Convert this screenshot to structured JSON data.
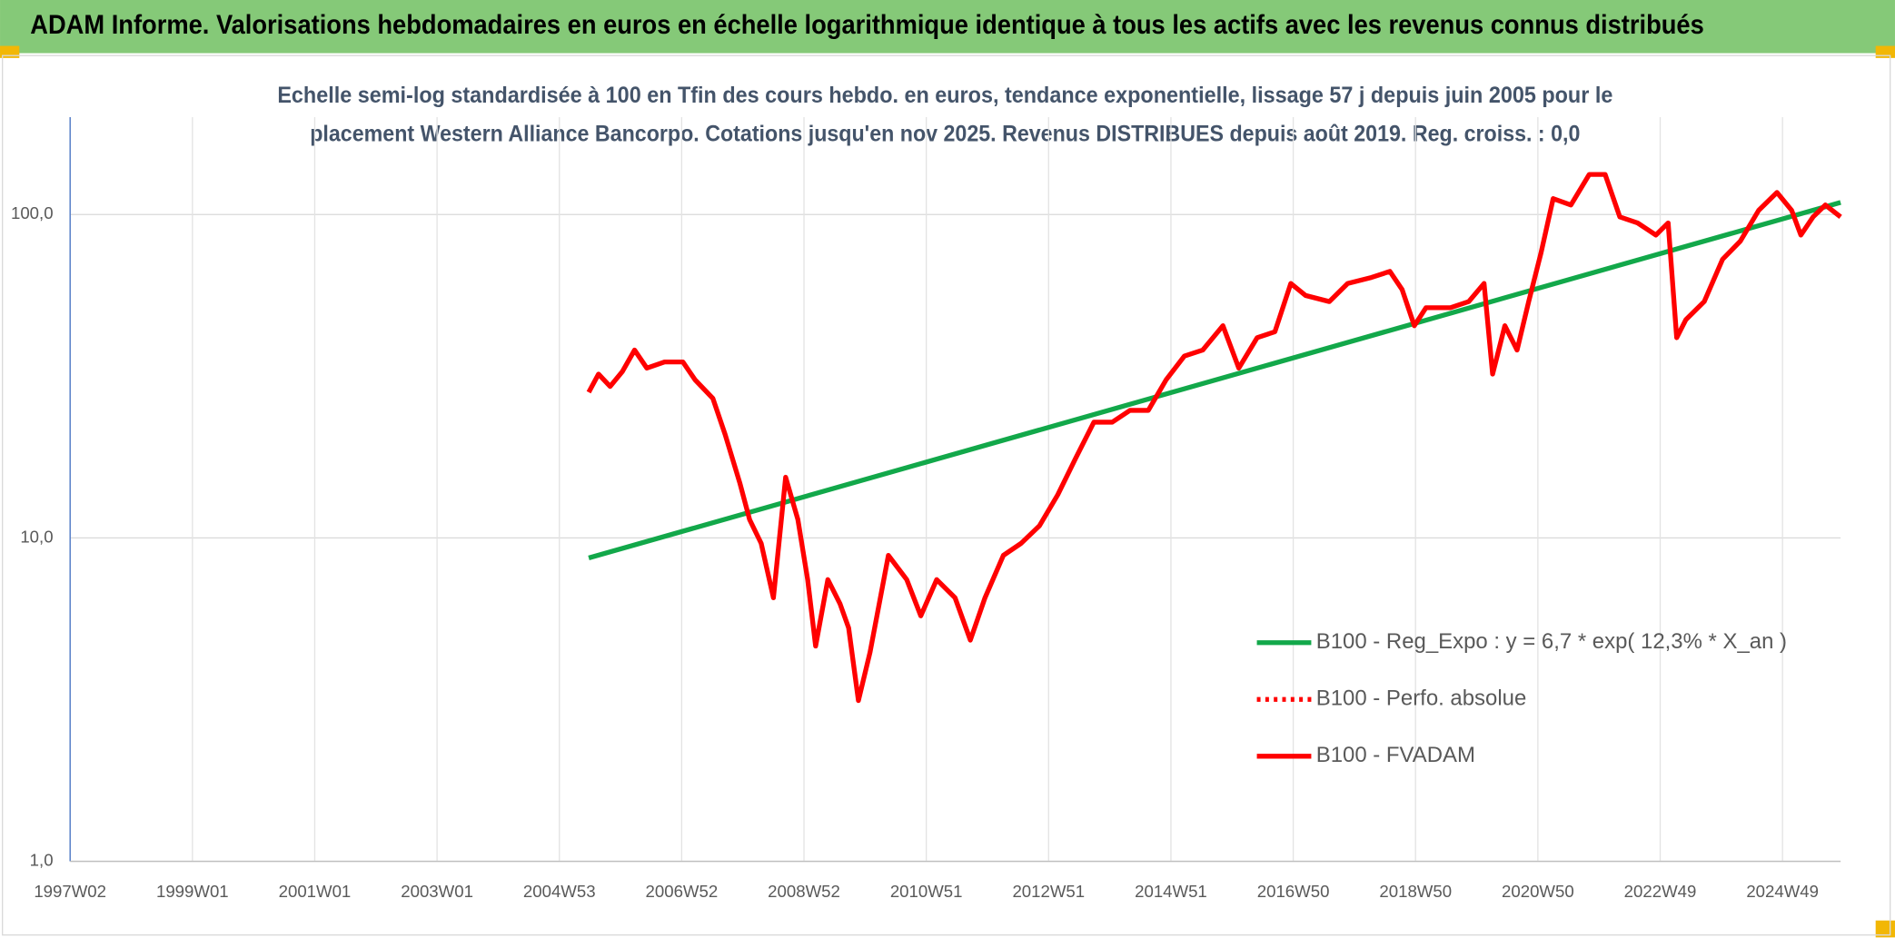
{
  "chart_data": {
    "type": "line",
    "title": "ADAM Informe. Valorisations hebdomadaires en euros en échelle logarithmique identique à tous les actifs avec les revenus connus distribués",
    "subtitle": [
      "Echelle semi-log standardisée à 100 en Tfin des cours hebdo. en euros, tendance exponentielle, lissage 57 j depuis juin 2005 pour le",
      "placement Western Alliance Bancorpo. Cotations jusqu'en nov 2025. Revenus DISTRIBUES depuis août 2019. Reg. croiss. : 0,0"
    ],
    "log_scale": true,
    "grid": true,
    "legend": "lower right",
    "xlim": [
      1997.0,
      2025.95
    ],
    "xticks": [
      {
        "value": 1997.0,
        "label": "1997W02"
      },
      {
        "value": 1999.0,
        "label": "1999W01"
      },
      {
        "value": 2001.0,
        "label": "2001W01"
      },
      {
        "value": 2003.0,
        "label": "2003W01"
      },
      {
        "value": 2005.0,
        "label": "2004W53"
      },
      {
        "value": 2007.0,
        "label": "2006W52"
      },
      {
        "value": 2009.0,
        "label": "2008W52"
      },
      {
        "value": 2011.0,
        "label": "2010W51"
      },
      {
        "value": 2013.0,
        "label": "2012W51"
      },
      {
        "value": 2015.0,
        "label": "2014W51"
      },
      {
        "value": 2017.0,
        "label": "2016W50"
      },
      {
        "value": 2019.0,
        "label": "2018W50"
      },
      {
        "value": 2021.0,
        "label": "2020W50"
      },
      {
        "value": 2023.0,
        "label": "2022W49"
      },
      {
        "value": 2025.0,
        "label": "2024W49"
      }
    ],
    "ylim": [
      1,
      200
    ],
    "yticks": [
      {
        "value": 1,
        "label": "1,0"
      },
      {
        "value": 10,
        "label": "10,0"
      },
      {
        "value": 100,
        "label": "100,0"
      }
    ],
    "series": [
      {
        "name": "B100 - Reg_Expo : y = 6,7 * exp( 12,3% *  X_an )",
        "color": "#12a84a",
        "style": "solid",
        "x": [
          2005.48,
          2025.95
        ],
        "values": [
          8.67,
          109
        ]
      },
      {
        "name": "B100 - Perfo. absolue",
        "color": "#ff0000",
        "style": "dotted",
        "x": [],
        "values": []
      },
      {
        "name": "B100 - FVADAM",
        "color": "#ff0000",
        "style": "solid",
        "x": [
          2005.48,
          2005.64,
          2005.83,
          2006.03,
          2006.23,
          2006.43,
          2006.72,
          2007.02,
          2007.22,
          2007.51,
          2007.71,
          2007.95,
          2008.11,
          2008.3,
          2008.5,
          2008.7,
          2008.9,
          2009.06,
          2009.19,
          2009.39,
          2009.59,
          2009.73,
          2009.89,
          2010.08,
          2010.38,
          2010.68,
          2010.91,
          2011.17,
          2011.47,
          2011.72,
          2011.96,
          2012.26,
          2012.55,
          2012.85,
          2013.15,
          2013.44,
          2013.74,
          2014.04,
          2014.33,
          2014.63,
          2014.92,
          2015.22,
          2015.52,
          2015.85,
          2016.11,
          2016.41,
          2016.7,
          2016.96,
          2017.2,
          2017.59,
          2017.89,
          2018.28,
          2018.58,
          2018.78,
          2018.98,
          2019.17,
          2019.57,
          2019.87,
          2020.12,
          2020.26,
          2020.46,
          2020.66,
          2020.85,
          2021.05,
          2021.25,
          2021.54,
          2021.84,
          2022.1,
          2022.34,
          2022.63,
          2022.93,
          2023.13,
          2023.27,
          2023.42,
          2023.72,
          2024.02,
          2024.31,
          2024.61,
          2024.91,
          2025.15,
          2025.3,
          2025.5,
          2025.7,
          2025.95
        ],
        "values": [
          28.2,
          32.1,
          29.4,
          32.7,
          38.1,
          33.5,
          35.0,
          35.0,
          30.8,
          27.0,
          20.9,
          14.8,
          11.4,
          9.62,
          6.53,
          15.4,
          11.4,
          7.43,
          4.63,
          7.43,
          6.25,
          5.27,
          3.14,
          4.43,
          8.83,
          7.43,
          5.74,
          7.43,
          6.53,
          4.83,
          6.53,
          8.83,
          9.62,
          10.9,
          13.6,
          17.6,
          22.8,
          22.8,
          24.8,
          24.8,
          30.8,
          36.5,
          38.1,
          45.3,
          33.5,
          41.6,
          43.4,
          61.2,
          56.2,
          53.8,
          61.2,
          63.9,
          66.7,
          58.6,
          45.3,
          51.5,
          51.5,
          53.8,
          61.2,
          32.1,
          45.3,
          38.1,
          53.8,
          75.9,
          112,
          107,
          133,
          133,
          98.3,
          94.2,
          86.4,
          94.2,
          41.6,
          47.3,
          53.8,
          72.7,
          82.7,
          103,
          117,
          103,
          86.4,
          98.3,
          107,
          98.3
        ]
      }
    ]
  }
}
